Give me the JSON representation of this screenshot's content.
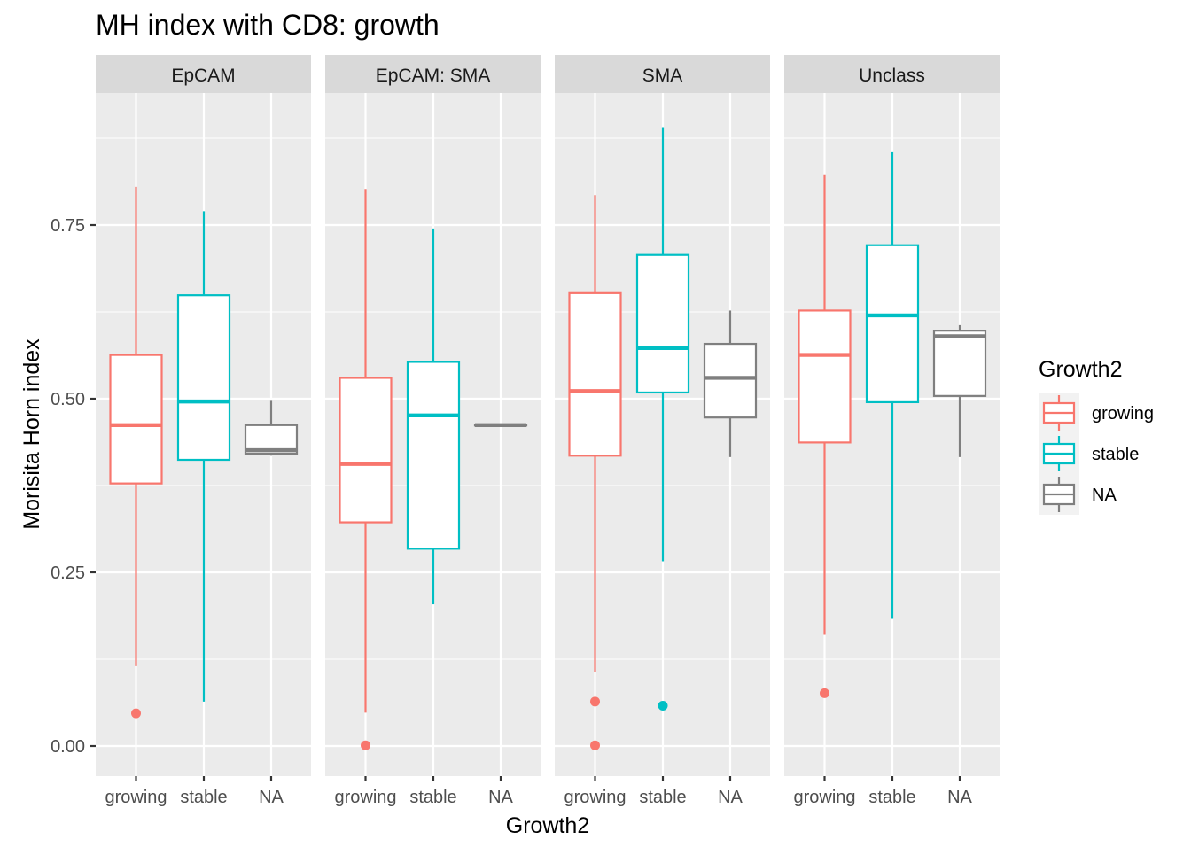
{
  "chart_data": {
    "type": "boxplot",
    "title": "MH index with CD8: growth",
    "xlabel": "Growth2",
    "ylabel": "Morisita Horn index",
    "ylim": [
      -0.04,
      0.94
    ],
    "yticks": [
      0.0,
      0.25,
      0.5,
      0.75
    ],
    "ytick_labels": [
      "0.00",
      "0.25",
      "0.50",
      "0.75"
    ],
    "categories": [
      "growing",
      "stable",
      "NA"
    ],
    "category_labels": [
      "growing",
      "stable",
      "NA"
    ],
    "colors": {
      "growing": "#F8766D",
      "stable": "#00BFC4",
      "NA": "#7F7F7F"
    },
    "grid": true,
    "legend": {
      "title": "Growth2",
      "placement": "right",
      "entries": [
        "growing",
        "stable",
        "NA"
      ]
    },
    "panels": [
      {
        "name": "EpCAM",
        "boxes": [
          {
            "category": "growing",
            "min": 0.115,
            "q1": 0.378,
            "median": 0.462,
            "q3": 0.563,
            "max": 0.805,
            "outliers": [
              0.047
            ]
          },
          {
            "category": "stable",
            "min": 0.064,
            "q1": 0.412,
            "median": 0.496,
            "q3": 0.649,
            "max": 0.77,
            "outliers": []
          },
          {
            "category": "NA",
            "min": 0.418,
            "q1": 0.421,
            "median": 0.426,
            "q3": 0.462,
            "max": 0.497,
            "outliers": []
          }
        ]
      },
      {
        "name": "EpCAM: SMA",
        "boxes": [
          {
            "category": "growing",
            "min": 0.048,
            "q1": 0.322,
            "median": 0.406,
            "q3": 0.53,
            "max": 0.802,
            "outliers": [
              0.001
            ]
          },
          {
            "category": "stable",
            "min": 0.204,
            "q1": 0.284,
            "median": 0.476,
            "q3": 0.553,
            "max": 0.745,
            "outliers": []
          },
          {
            "category": "NA",
            "min": 0.462,
            "q1": 0.462,
            "median": 0.462,
            "q3": 0.462,
            "max": 0.462,
            "outliers": []
          }
        ]
      },
      {
        "name": "SMA",
        "boxes": [
          {
            "category": "growing",
            "min": 0.107,
            "q1": 0.418,
            "median": 0.511,
            "q3": 0.652,
            "max": 0.793,
            "outliers": [
              0.064,
              0.001
            ]
          },
          {
            "category": "stable",
            "min": 0.266,
            "q1": 0.509,
            "median": 0.573,
            "q3": 0.707,
            "max": 0.891,
            "outliers": [
              0.058
            ]
          },
          {
            "category": "NA",
            "min": 0.416,
            "q1": 0.473,
            "median": 0.53,
            "q3": 0.579,
            "max": 0.627,
            "outliers": []
          }
        ]
      },
      {
        "name": "Unclass",
        "boxes": [
          {
            "category": "growing",
            "min": 0.16,
            "q1": 0.437,
            "median": 0.563,
            "q3": 0.627,
            "max": 0.823,
            "outliers": [
              0.076
            ]
          },
          {
            "category": "stable",
            "min": 0.183,
            "q1": 0.495,
            "median": 0.62,
            "q3": 0.721,
            "max": 0.856,
            "outliers": []
          },
          {
            "category": "NA",
            "min": 0.416,
            "q1": 0.504,
            "median": 0.59,
            "q3": 0.598,
            "max": 0.606,
            "outliers": []
          }
        ]
      }
    ]
  }
}
